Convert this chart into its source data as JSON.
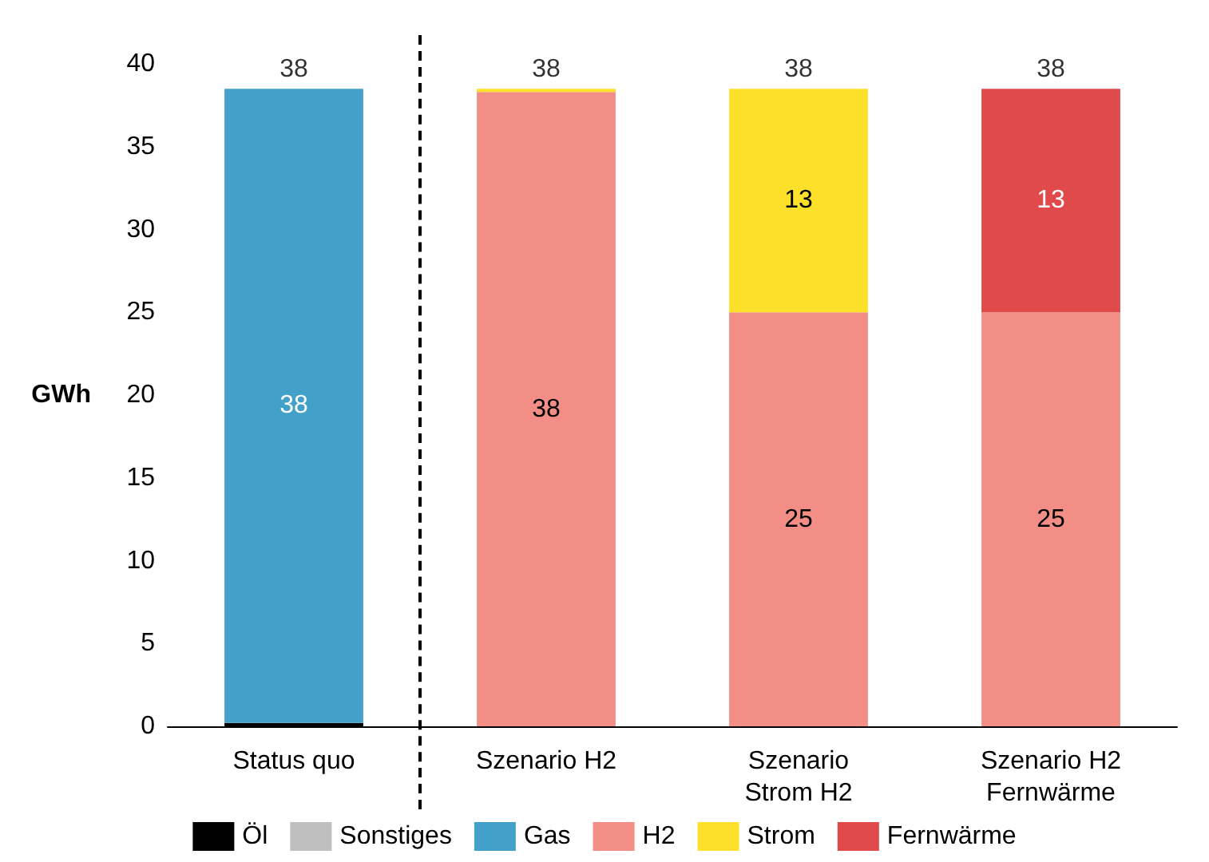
{
  "chart_data": {
    "type": "bar",
    "stacked": true,
    "ylabel": "GWh",
    "categories": [
      "Status quo",
      "Szenario H2",
      "Szenario\nStrom H2",
      "Szenario H2\nFernwärme"
    ],
    "series": [
      {
        "name": "Öl",
        "color": "#000000",
        "values": [
          0.2,
          0,
          0,
          0
        ],
        "value_labels": [
          null,
          null,
          null,
          null
        ]
      },
      {
        "name": "Sonstiges",
        "color": "#bfbfbf",
        "values": [
          0,
          0,
          0,
          0
        ],
        "value_labels": [
          null,
          null,
          null,
          null
        ]
      },
      {
        "name": "Gas",
        "color": "#43a0c8",
        "values": [
          38.3,
          0,
          0,
          0
        ],
        "value_labels": [
          "38",
          null,
          null,
          null
        ]
      },
      {
        "name": "H2",
        "color": "#f28e86",
        "values": [
          0,
          38.3,
          25,
          25
        ],
        "value_labels": [
          null,
          "38",
          "25",
          "25"
        ]
      },
      {
        "name": "Strom",
        "color": "#fde02a",
        "values": [
          0,
          0.2,
          13.5,
          0
        ],
        "value_labels": [
          null,
          null,
          "13",
          null
        ]
      },
      {
        "name": "Fernwärme",
        "color": "#e04a4b",
        "values": [
          0,
          0,
          0,
          13.5
        ],
        "value_labels": [
          null,
          null,
          null,
          "13"
        ]
      }
    ],
    "totals": [
      "38",
      "38",
      "38",
      "38"
    ],
    "ylim": [
      0,
      40
    ],
    "yticks": [
      0,
      5,
      10,
      15,
      20,
      25,
      30,
      35,
      40
    ],
    "grid": false,
    "legend": "bottom"
  }
}
